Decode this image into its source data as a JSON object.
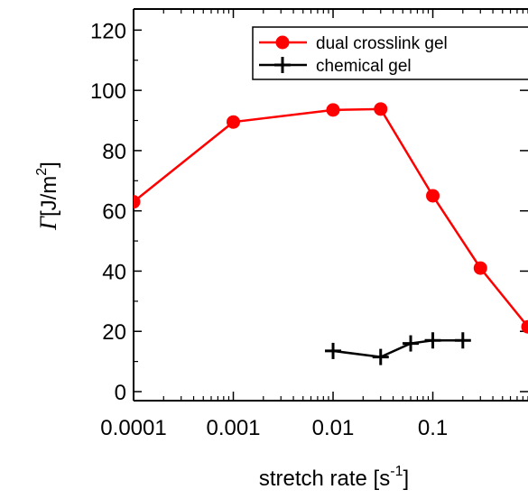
{
  "chart_data": {
    "type": "line",
    "xscale": "log",
    "xlim": [
      0.0001,
      0.9
    ],
    "ylim": [
      -3,
      127
    ],
    "xticks": [
      0.0001,
      0.001,
      0.01,
      0.1
    ],
    "xtick_labels": [
      "0.0001",
      "0.001",
      "0.01",
      "0.1"
    ],
    "yticks": [
      0,
      20,
      40,
      60,
      80,
      100,
      120
    ],
    "ytick_labels": [
      "0",
      "20",
      "40",
      "60",
      "80",
      "100",
      "120"
    ],
    "xlabel": {
      "text": "stretch rate [s",
      "sup": "-1",
      "suffix": "]"
    },
    "ylabel": {
      "symbol": "Γ",
      "unit": "[J/m",
      "sup": "2",
      "suffix": "]"
    },
    "legend_position": "top-right",
    "grid": false,
    "series": [
      {
        "name": "dual crosslink gel",
        "color": "#ff0000",
        "marker": "circle",
        "x": [
          0.0001,
          0.001,
          0.01,
          0.03,
          0.1,
          0.3,
          0.9
        ],
        "y": [
          63,
          89.5,
          93.5,
          93.8,
          65,
          41,
          21.5
        ]
      },
      {
        "name": "chemical gel",
        "color": "#000000",
        "marker": "plus",
        "x": [
          0.01,
          0.03,
          0.06,
          0.1,
          0.2
        ],
        "y": [
          13.5,
          11.5,
          16,
          17,
          17
        ]
      }
    ]
  }
}
